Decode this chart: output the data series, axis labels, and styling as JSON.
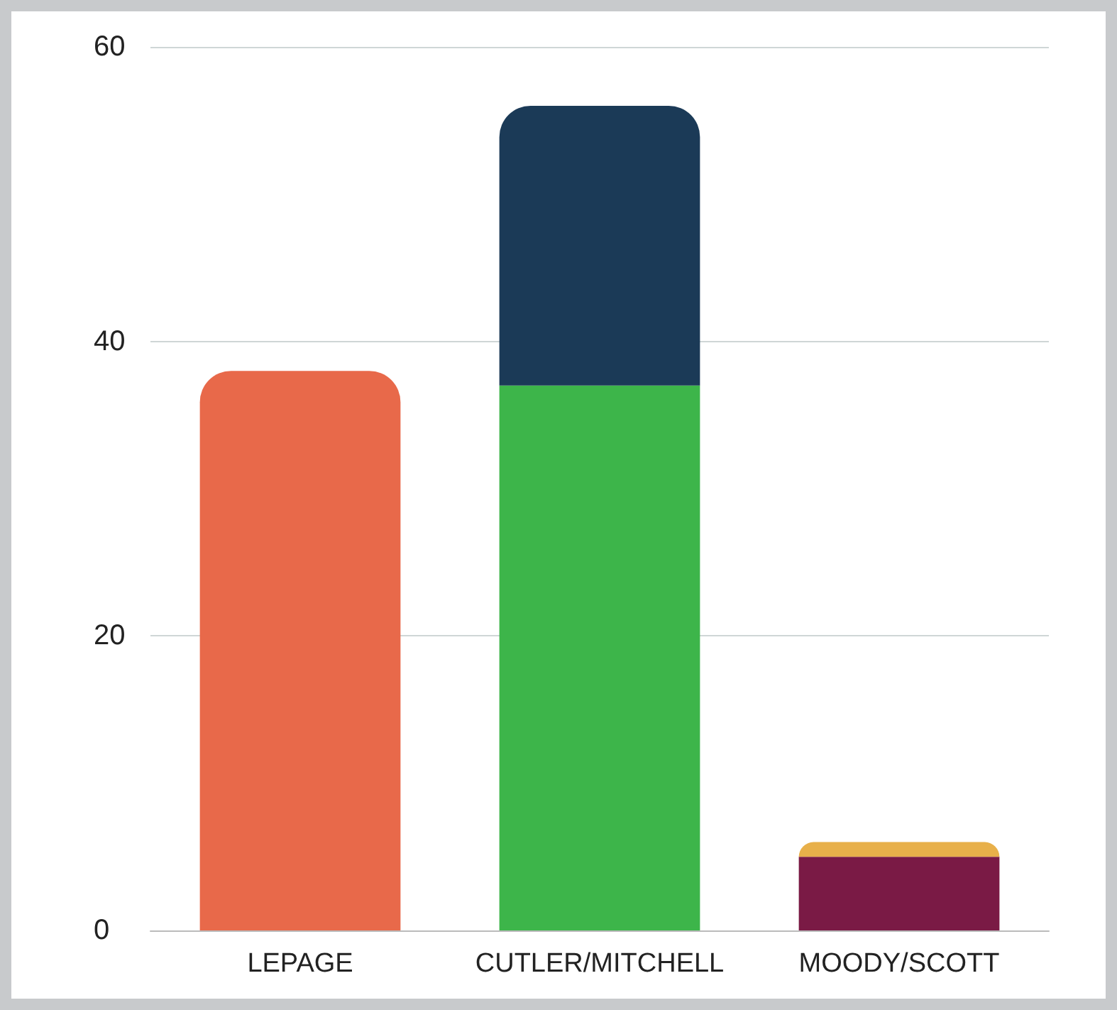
{
  "chart_data": {
    "type": "bar",
    "stacked": true,
    "categories": [
      "LEPAGE",
      "CUTLER/MITCHELL",
      "MOODY/SCOTT"
    ],
    "series": [
      {
        "colors": [
          "#e8694a",
          "#3db54a",
          "#7a1a45"
        ],
        "values": [
          38,
          37,
          5
        ]
      },
      {
        "colors": [
          "#e8694a",
          "#1b3a57",
          "#e8b04a"
        ],
        "values": [
          null,
          19,
          1
        ]
      }
    ],
    "ylim": [
      0,
      60
    ],
    "yticks": [
      0,
      20,
      40,
      60
    ],
    "grid": "y"
  }
}
